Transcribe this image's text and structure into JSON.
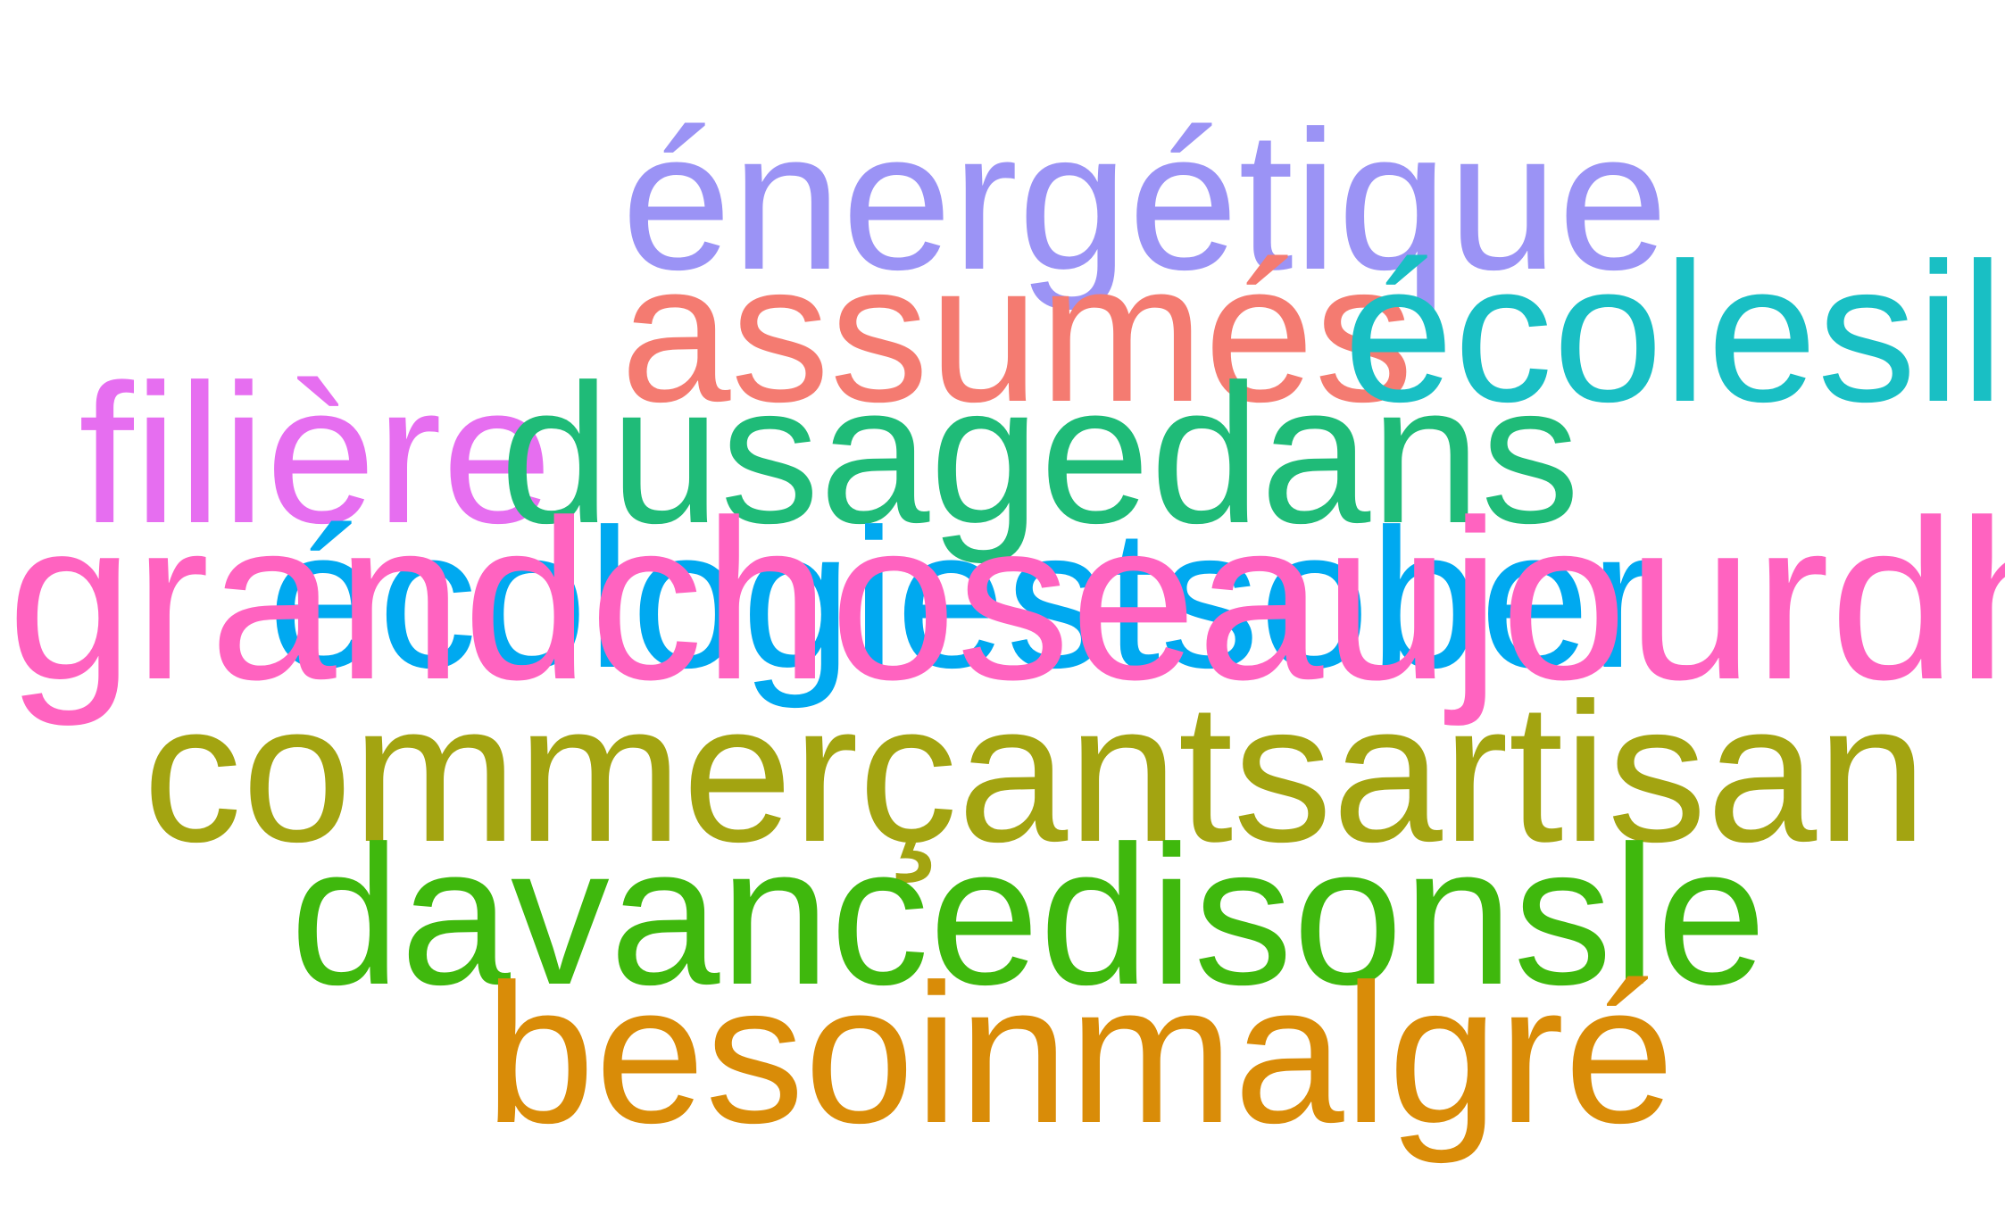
{
  "colors": {
    "lavender": "#9b93f5",
    "salmon": "#f47b71",
    "teal": "#19bfc4",
    "violet": "#e66ef0",
    "green": "#1fbb78",
    "sky": "#00a9f0",
    "pink": "#ff63c0",
    "olive": "#a3a411",
    "lime": "#3fb80d",
    "orange": "#d98c08"
  },
  "words": {
    "energetique": "énergétique",
    "assumes": "assumés",
    "ecolesil": "écolesil",
    "filiere": "filière",
    "dusagedans": "dusagedans",
    "blue_overlap": "écologiestsober",
    "pink_overlap": "grandchoseaujourdhui",
    "commercants": "commerçantsartisan",
    "davance": "davancedisonsle",
    "besoin": "besoinmalgré"
  }
}
